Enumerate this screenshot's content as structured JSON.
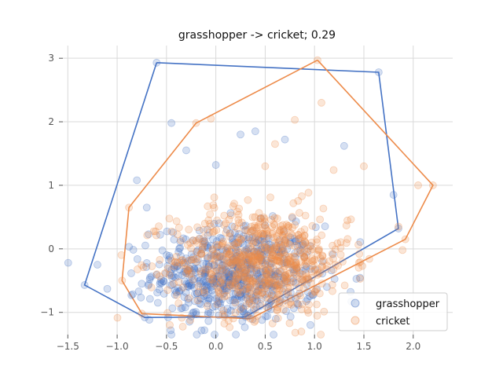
{
  "chart_data": {
    "type": "scatter",
    "title": "grasshopper -> cricket; 0.29",
    "xlabel": "",
    "ylabel": "",
    "xlim": [
      -1.55,
      2.4
    ],
    "ylim": [
      -1.35,
      3.2
    ],
    "grid": true,
    "legend_position": "bottom-right",
    "xticks": [
      -1.5,
      -1.0,
      -0.5,
      0.0,
      0.5,
      1.0,
      1.5,
      2.0
    ],
    "yticks": [
      -1,
      0,
      1,
      2,
      3
    ],
    "xtick_labels": [
      "−1.5",
      "−1.0",
      "−0.5",
      "0.0",
      "0.5",
      "1.0",
      "1.5",
      "2.0"
    ],
    "ytick_labels": [
      "−1",
      "0",
      "1",
      "2",
      "3"
    ],
    "series": [
      {
        "name": "grasshopper",
        "color": "#4472c4",
        "point_count": 650,
        "x_mean": 0.2,
        "y_mean": -0.4,
        "x_sd": 0.42,
        "y_sd": 0.38,
        "hull": [
          [
            -0.6,
            2.93
          ],
          [
            1.65,
            2.78
          ],
          [
            1.85,
            0.32
          ],
          [
            0.3,
            -1.07
          ],
          [
            -0.72,
            -1.08
          ],
          [
            -1.33,
            -0.57
          ],
          [
            -0.6,
            2.93
          ]
        ],
        "points": [
          [
            -0.6,
            2.93
          ],
          [
            1.65,
            2.78
          ],
          [
            -0.45,
            1.98
          ],
          [
            0.4,
            1.85
          ],
          [
            0.25,
            1.8
          ],
          [
            -0.3,
            1.55
          ],
          [
            0.0,
            1.32
          ],
          [
            1.3,
            1.62
          ],
          [
            -0.8,
            1.08
          ],
          [
            -0.7,
            0.65
          ],
          [
            -1.2,
            -0.25
          ],
          [
            -1.33,
            -0.57
          ],
          [
            -1.1,
            -0.63
          ],
          [
            -0.72,
            -1.08
          ],
          [
            1.85,
            0.32
          ],
          [
            1.8,
            0.85
          ],
          [
            0.3,
            -1.07
          ],
          [
            0.7,
            1.72
          ]
        ]
      },
      {
        "name": "cricket",
        "color": "#ed8b4a",
        "point_count": 700,
        "x_mean": 0.45,
        "y_mean": -0.2,
        "x_sd": 0.45,
        "y_sd": 0.42,
        "hull": [
          [
            1.03,
            2.97
          ],
          [
            2.2,
            1.0
          ],
          [
            1.92,
            0.15
          ],
          [
            0.35,
            -1.1
          ],
          [
            -0.75,
            -1.02
          ],
          [
            -0.95,
            -0.5
          ],
          [
            -0.88,
            0.65
          ],
          [
            -0.2,
            1.98
          ],
          [
            1.03,
            2.97
          ]
        ],
        "points": [
          [
            1.03,
            2.97
          ],
          [
            1.07,
            2.3
          ],
          [
            2.2,
            1.0
          ],
          [
            2.05,
            1.0
          ],
          [
            1.92,
            0.15
          ],
          [
            0.8,
            2.03
          ],
          [
            0.6,
            1.65
          ],
          [
            -0.2,
            1.98
          ],
          [
            -0.05,
            2.05
          ],
          [
            -0.88,
            0.65
          ],
          [
            -0.95,
            -0.5
          ],
          [
            -0.75,
            -1.02
          ],
          [
            1.5,
            1.3
          ],
          [
            0.5,
            1.3
          ],
          [
            0.35,
            -1.1
          ],
          [
            1.85,
            0.35
          ]
        ]
      }
    ]
  }
}
